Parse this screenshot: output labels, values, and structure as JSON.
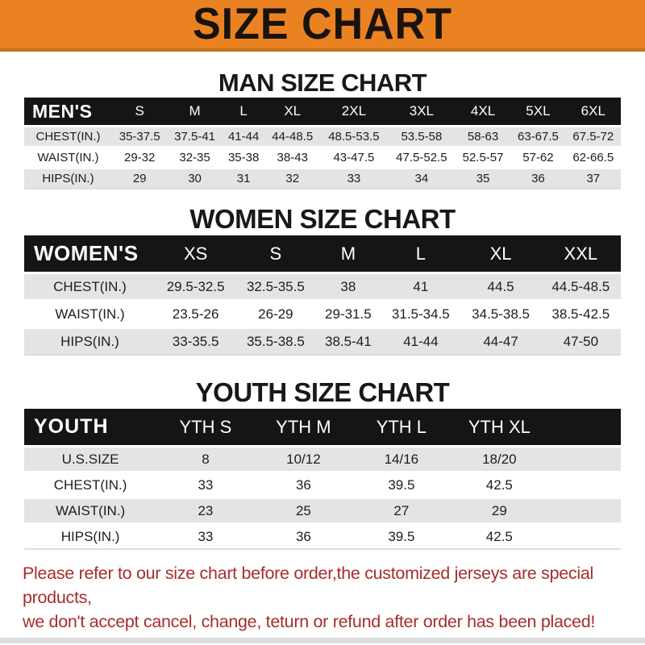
{
  "banner": {
    "title": "SIZE CHART",
    "bg_color": "#EB8222",
    "text_color": "#191310"
  },
  "colors": {
    "header_bar": "#151515",
    "row_gray": "#E4E4E4",
    "row_white": "#FFFFFF",
    "footer_red": "#A62E2C"
  },
  "chart_data": [
    {
      "type": "table",
      "title": "MAN SIZE CHART",
      "corner_label": "MEN'S",
      "columns": [
        "S",
        "M",
        "L",
        "XL",
        "2XL",
        "3XL",
        "4XL",
        "5XL",
        "6XL"
      ],
      "rows": [
        {
          "label": "CHEST(IN.)",
          "values": [
            "35-37.5",
            "37.5-41",
            "41-44",
            "44-48.5",
            "48.5-53.5",
            "53.5-58",
            "58-63",
            "63-67.5",
            "67.5-72"
          ]
        },
        {
          "label": "WAIST(IN.)",
          "values": [
            "29-32",
            "32-35",
            "35-38",
            "38-43",
            "43-47.5",
            "47.5-52.5",
            "52.5-57",
            "57-62",
            "62-66.5"
          ]
        },
        {
          "label": "HIPS(IN.)",
          "values": [
            "29",
            "30",
            "31",
            "32",
            "33",
            "34",
            "35",
            "36",
            "37"
          ]
        }
      ]
    },
    {
      "type": "table",
      "title": "WOMEN SIZE CHART",
      "corner_label": "WOMEN'S",
      "columns": [
        "XS",
        "S",
        "M",
        "L",
        "XL",
        "XXL"
      ],
      "rows": [
        {
          "label": "CHEST(IN.)",
          "values": [
            "29.5-32.5",
            "32.5-35.5",
            "38",
            "41",
            "44.5",
            "44.5-48.5"
          ]
        },
        {
          "label": "WAIST(IN.)",
          "values": [
            "23.5-26",
            "26-29",
            "29-31.5",
            "31.5-34.5",
            "34.5-38.5",
            "38.5-42.5"
          ]
        },
        {
          "label": "HIPS(IN.)",
          "values": [
            "33-35.5",
            "35.5-38.5",
            "38.5-41",
            "41-44",
            "44-47",
            "47-50"
          ]
        }
      ]
    },
    {
      "type": "table",
      "title": "YOUTH SIZE CHART",
      "corner_label": "YOUTH",
      "columns": [
        "YTH S",
        "YTH M",
        "YTH L",
        "YTH XL"
      ],
      "rows": [
        {
          "label": "U.S.SIZE",
          "values": [
            "8",
            "10/12",
            "14/16",
            "18/20"
          ]
        },
        {
          "label": "CHEST(IN.)",
          "values": [
            "33",
            "36",
            "39.5",
            "42.5"
          ]
        },
        {
          "label": "WAIST(IN.)",
          "values": [
            "23",
            "25",
            "27",
            "29"
          ]
        },
        {
          "label": "HIPS(IN.)",
          "values": [
            "33",
            "36",
            "39.5",
            "42.5"
          ]
        }
      ]
    }
  ],
  "footer": {
    "line1": "Please refer to our size chart before order,the customized jerseys are special products,",
    "line2": "we don't accept cancel, change, teturn or refund after order has been placed!"
  }
}
